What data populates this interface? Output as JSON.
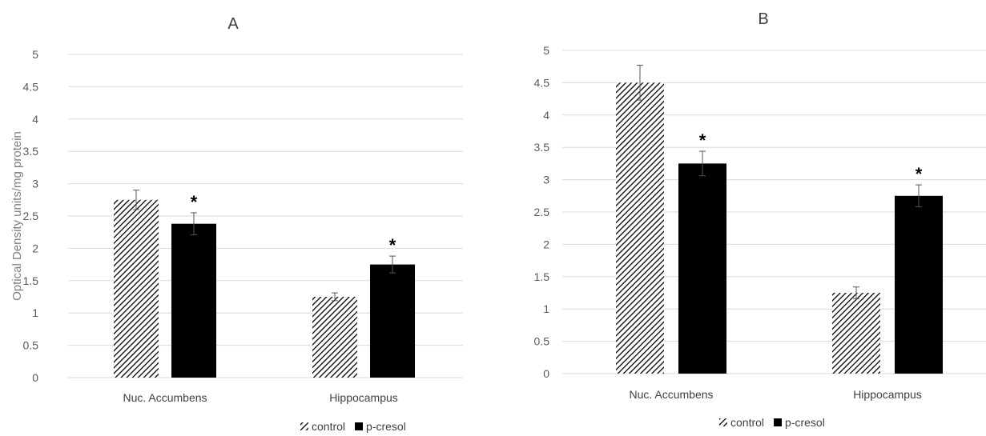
{
  "chart_data": [
    {
      "type": "bar",
      "title": "A",
      "ylabel": "Optical Density units/mg protein",
      "xlabel": "",
      "ylim": [
        0,
        5
      ],
      "yticks": [
        "0",
        "0.5",
        "1",
        "1.5",
        "2",
        "2.5",
        "3",
        "3.5",
        "4",
        "4.5",
        "5"
      ],
      "categories": [
        "Nuc. Accumbens",
        "Hippocampus"
      ],
      "series": [
        {
          "name": "control",
          "values": [
            2.75,
            1.25
          ],
          "errors": [
            0.15,
            0.06
          ],
          "significant": [
            false,
            false
          ]
        },
        {
          "name": "p-cresol",
          "values": [
            2.38,
            1.75
          ],
          "errors": [
            0.17,
            0.13
          ],
          "significant": [
            true,
            true
          ]
        }
      ],
      "significance_marker": "*",
      "grid": true,
      "legend": "bottom"
    },
    {
      "type": "bar",
      "title": "B",
      "ylabel": "",
      "xlabel": "",
      "ylim": [
        0,
        5
      ],
      "yticks": [
        "0",
        "0.5",
        "1",
        "1.5",
        "2",
        "2.5",
        "3",
        "3.5",
        "4",
        "4.5",
        "5"
      ],
      "categories": [
        "Nuc. Accumbens",
        "Hippocampus"
      ],
      "series": [
        {
          "name": "control",
          "values": [
            4.5,
            1.25
          ],
          "errors": [
            0.27,
            0.09
          ],
          "significant": [
            false,
            false
          ]
        },
        {
          "name": "p-cresol",
          "values": [
            3.25,
            2.75
          ],
          "errors": [
            0.19,
            0.17
          ],
          "significant": [
            true,
            true
          ]
        }
      ],
      "significance_marker": "*",
      "grid": true,
      "legend": "bottom"
    }
  ]
}
